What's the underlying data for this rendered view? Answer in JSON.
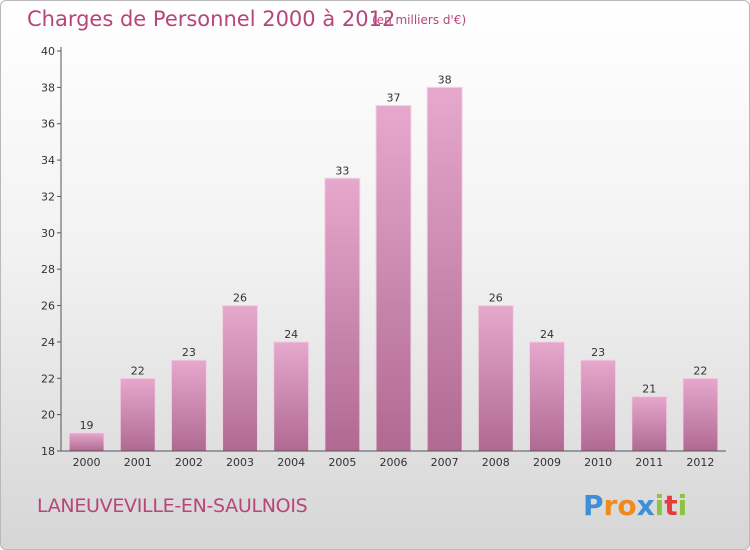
{
  "chart_data": {
    "type": "bar",
    "title": "Charges de Personnel 2000 à 2012",
    "subtitle": "(en milliers d'€)",
    "categories": [
      "2000",
      "2001",
      "2002",
      "2003",
      "2004",
      "2005",
      "2006",
      "2007",
      "2008",
      "2009",
      "2010",
      "2011",
      "2012"
    ],
    "values": [
      19,
      22,
      23,
      26,
      24,
      33,
      37,
      38,
      26,
      24,
      23,
      21,
      22
    ],
    "ylim": [
      18,
      40
    ],
    "yticks": [
      18,
      20,
      22,
      24,
      26,
      28,
      30,
      32,
      34,
      36,
      38,
      40
    ],
    "grid": false,
    "bar_color_light": "#e6a8cc",
    "bar_color_dark": "#b06a92"
  },
  "footer": {
    "commune": "LANEUVEVILLE-EN-SAULNOIS",
    "logo_letters": [
      "P",
      "r",
      "o",
      "x",
      "i",
      "t",
      "i"
    ],
    "logo_colors": [
      "#3e8fd6",
      "#f08a1c",
      "#f08a1c",
      "#3e8fd6",
      "#8bc53f",
      "#e53d3d",
      "#8bc53f"
    ]
  }
}
